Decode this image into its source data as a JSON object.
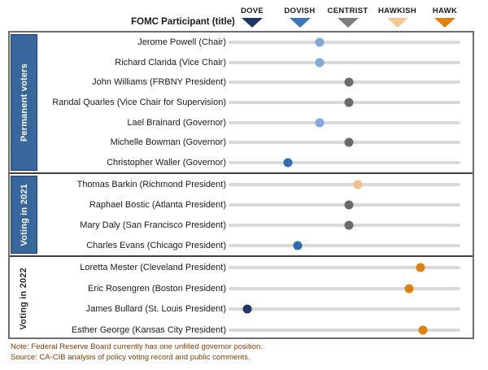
{
  "header": {
    "participant_col_label": "FOMC Participant (title)",
    "scale_legend": [
      {
        "label": "DOVE",
        "color": "#1f3864"
      },
      {
        "label": "DOVISH",
        "color": "#3c77be"
      },
      {
        "label": "CENTRIST",
        "color": "#7f7f7f"
      },
      {
        "label": "HAWKISH",
        "color": "#f6c695"
      },
      {
        "label": "HAWK",
        "color": "#e2800f"
      }
    ]
  },
  "colors": {
    "light_blue": "#7fa8db",
    "medium_blue": "#2e6db3",
    "dark_navy": "#1a3a68",
    "gray": "#6a6a6a",
    "light_peach": "#f4be8b",
    "orange": "#e2800f",
    "sidebar_blue": "#38679e",
    "track_gray": "#d9d9d9"
  },
  "chart_data": {
    "type": "scatter",
    "description": "Dot plot placing each FOMC participant on a dove-to-hawk policy stance scale",
    "x_axis": {
      "categories": [
        "DOVE",
        "DOVISH",
        "CENTRIST",
        "HAWKISH",
        "HAWK"
      ],
      "category_values": [
        0,
        1,
        2,
        3,
        4
      ]
    },
    "sections": [
      {
        "label": "Permanent voters",
        "style": "blue",
        "rows": [
          {
            "name": "Jerome Powell (Chair)",
            "value": 1.4,
            "stance": "light_blue"
          },
          {
            "name": "Richard Clarida (Vice Chair)",
            "value": 1.4,
            "stance": "light_blue"
          },
          {
            "name": "John Williams (FRBNY President)",
            "value": 2.0,
            "stance": "gray"
          },
          {
            "name": "Randal Quarles (Vice Chair for Supervision)",
            "value": 2.0,
            "stance": "gray"
          },
          {
            "name": "Lael Brainard (Governor)",
            "value": 1.4,
            "stance": "light_blue"
          },
          {
            "name": "Michelle Bowman (Governor)",
            "value": 2.0,
            "stance": "gray"
          },
          {
            "name": "Christopher Waller (Governor)",
            "value": 0.75,
            "stance": "medium_blue"
          }
        ]
      },
      {
        "label": "Voting in 2021",
        "style": "blue",
        "rows": [
          {
            "name": "Thomas Barkin (Richmond President)",
            "value": 2.2,
            "stance": "light_peach"
          },
          {
            "name": "Raphael Bostic (Atlanta President)",
            "value": 2.0,
            "stance": "gray"
          },
          {
            "name": "Mary Daly (San Francisco President)",
            "value": 2.0,
            "stance": "gray"
          },
          {
            "name": "Charles Evans (Chicago President)",
            "value": 0.95,
            "stance": "medium_blue"
          }
        ]
      },
      {
        "label": "Voting in 2022",
        "style": "white",
        "rows": [
          {
            "name": "Loretta Mester (Cleveland President)",
            "value": 3.5,
            "stance": "orange"
          },
          {
            "name": "Eric Rosengren (Boston President)",
            "value": 3.25,
            "stance": "orange"
          },
          {
            "name": "James Bullard (St. Louis President)",
            "value": -0.1,
            "stance": "dark_navy"
          },
          {
            "name": "Esther George (Kansas City President)",
            "value": 3.55,
            "stance": "orange"
          }
        ]
      }
    ]
  },
  "footer": {
    "note": "Note: Federal Reserve Board currently has one unfilled  governor position.",
    "source": "Source: CA-CIB analysis of policy voting record and public comments."
  }
}
